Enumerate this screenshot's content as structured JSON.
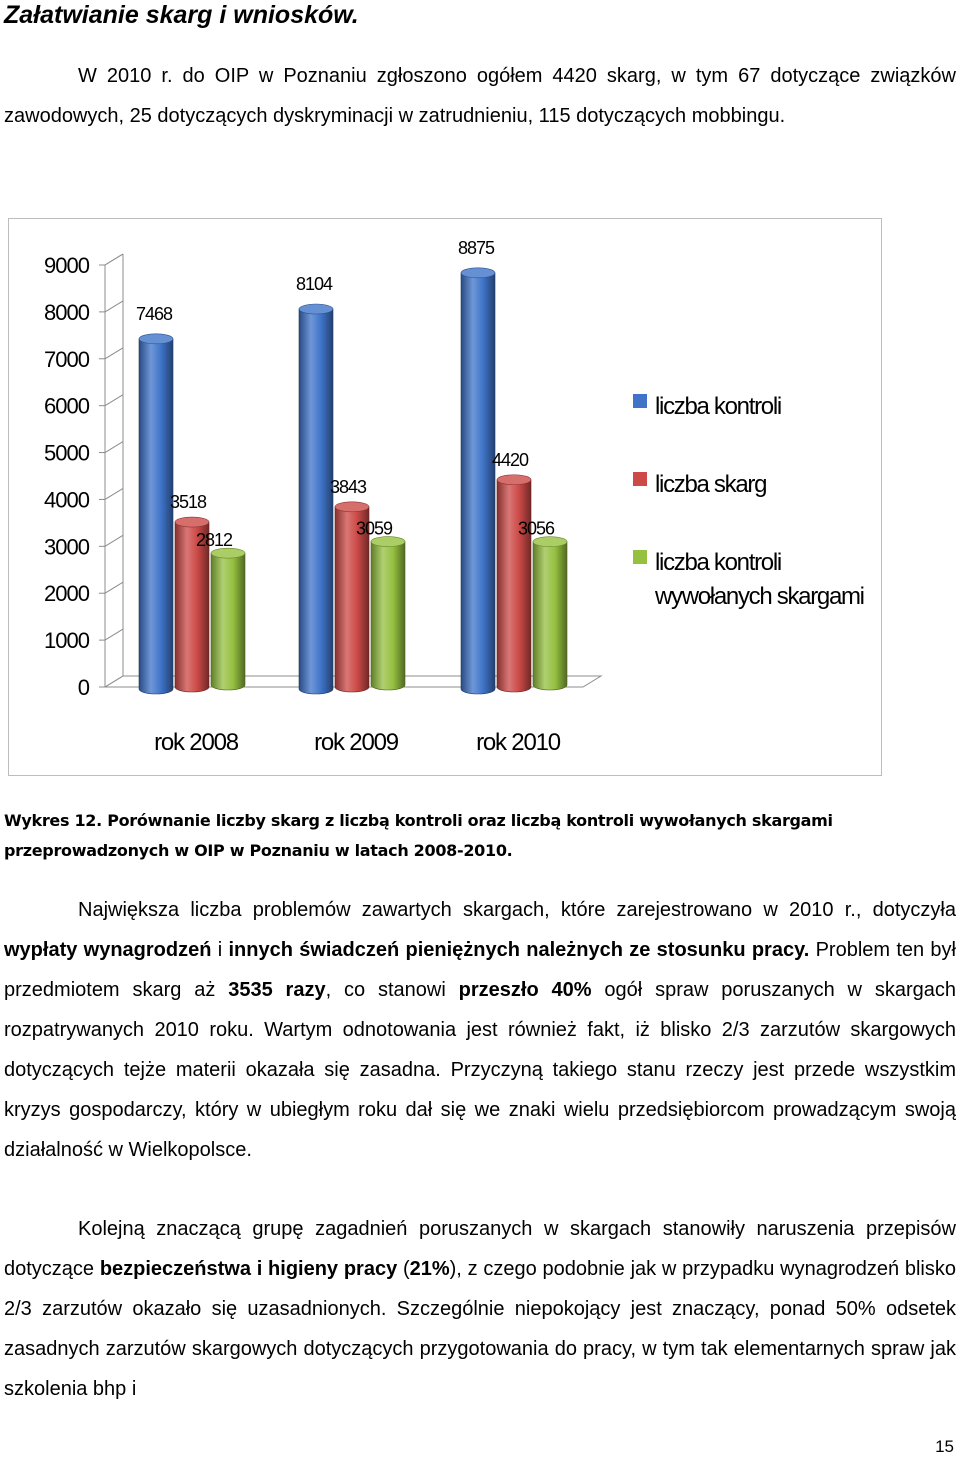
{
  "heading": "Załatwianie skarg i wniosków.",
  "intro": "W 2010 r. do OIP w Poznaniu zgłoszono ogółem 4420 skarg, w tym 67 dotyczące związków zawodowych, 25 dotyczących dyskryminacji w zatrudnieniu, 115 dotyczących mobbingu.",
  "caption": {
    "label": "Wykres 12.",
    "text": "Porównanie liczby skarg z liczbą kontroli oraz liczbą kontroli wywołanych skargami przeprowadzonych w OIP w Poznaniu w latach 2008-2010."
  },
  "paragraph2": {
    "t1": "Największa liczba problemów zawartych skargach, które zarejestrowano w  2010 r., dotyczyła ",
    "b1": "wypłaty wynagrodzeń",
    "t2": " i ",
    "b2": "innych świadczeń pieniężnych należnych ze stosunku pracy.",
    "t3": " Problem ten był przedmiotem skarg aż ",
    "b3": "3535 razy",
    "t4": ", co stanowi ",
    "b4": "przeszło 40%",
    "t5": " ogół spraw poruszanych w skargach rozpatrywanych 2010 roku. Wartym odnotowania jest również fakt, iż blisko 2/3 zarzutów skargowych dotyczących tejże materii  okazała się zasadna. Przyczyną takiego stanu rzeczy jest przede wszystkim kryzys gospodarczy, który w ubiegłym roku dał się we znaki wielu przedsiębiorcom prowadzącym swoją działalność w Wielkopolsce."
  },
  "paragraph3": {
    "t1": "Kolejną znaczącą grupę zagadnień poruszanych w skargach stanowiły naruszenia przepisów dotyczące ",
    "b1": "bezpieczeństwa i higieny pracy",
    "t2": " (",
    "b2": "21%",
    "t3": "), z czego  podobnie jak w przypadku wynagrodzeń blisko 2/3 zarzutów okazało się uzasadnionych. Szczególnie niepokojący jest znaczący, ponad 50% odsetek zasadnych zarzutów skargowych dotyczących przygotowania do pracy, w tym tak elementarnych spraw jak szkolenia bhp i"
  },
  "page_number": "15",
  "chart_data": {
    "type": "bar",
    "style": "3d-cylinder",
    "categories": [
      "rok 2008",
      "rok 2009",
      "rok 2010"
    ],
    "series": [
      {
        "name": "liczba kontroli",
        "values": [
          7468,
          8104,
          8875
        ],
        "color": "#3f74c9"
      },
      {
        "name": "liczba skarg",
        "values": [
          3518,
          3843,
          4420
        ],
        "color": "#cc4a47"
      },
      {
        "name": "liczba kontroli wywołanych skargami",
        "values": [
          2812,
          3059,
          3056
        ],
        "color": "#95c040"
      }
    ],
    "data_labels": [
      [
        "7468",
        "8104",
        "8875"
      ],
      [
        "3518",
        "3843",
        "4420"
      ],
      [
        "2812",
        "3059",
        "3056"
      ]
    ],
    "yticks": [
      "0",
      "1000",
      "2000",
      "3000",
      "4000",
      "5000",
      "6000",
      "7000",
      "8000",
      "9000"
    ],
    "ylim": [
      0,
      9000
    ],
    "legend_position": "right",
    "grid": false
  }
}
